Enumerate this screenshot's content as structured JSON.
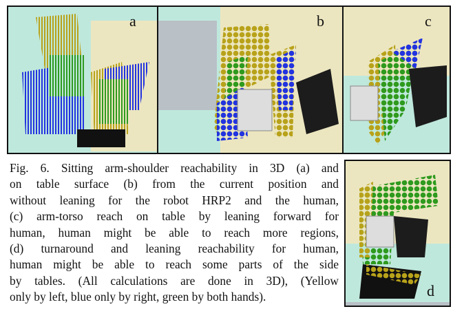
{
  "figure": {
    "panels": [
      {
        "label": "a"
      },
      {
        "label": "b"
      },
      {
        "label": "c"
      },
      {
        "label": "d"
      }
    ],
    "caption_lines": [
      "Fig. 6. Sitting arm-shoulder reachability in 3D (a) and",
      "on table surface (b) from the current position and",
      "without leaning for the robot HRP2 and the human,",
      "(c) arm-torso reach on table by leaning forward for",
      "human, human might be able to reach more regions,",
      "(d) turnaround and leaning reachability for human,",
      "human might be able to reach some parts of the side",
      "by tables. (All calculations are done in 3D), (Yellow",
      "only by left, blue only by right, green by both hands)."
    ]
  }
}
